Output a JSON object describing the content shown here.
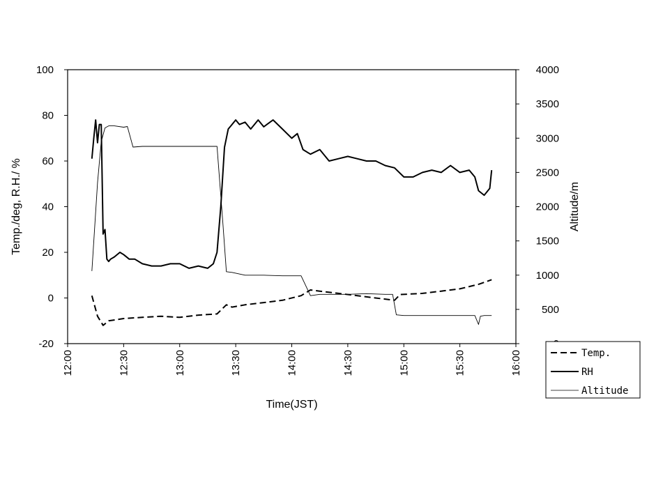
{
  "chart_data": {
    "type": "line",
    "title": "",
    "xlabel": "Time(JST)",
    "ylabel": "Temp./deg, R.H./ %",
    "y2label": "Altitude/m",
    "xlim": [
      "12:00",
      "16:00"
    ],
    "ylim": [
      -20,
      100
    ],
    "y2lim": [
      0,
      4000
    ],
    "x_ticks": [
      "12:00",
      "12:30",
      "13:00",
      "13:30",
      "14:00",
      "14:30",
      "15:00",
      "15:30",
      "16:00"
    ],
    "y_ticks": [
      "-20",
      "0",
      "20",
      "40",
      "60",
      "80",
      "100"
    ],
    "y2_ticks": [
      "0",
      "500",
      "1000",
      "1500",
      "2000",
      "2500",
      "3000",
      "3500",
      "4000"
    ],
    "grid": false,
    "legend_position": "bottom-right",
    "series": [
      {
        "name": "Temp.",
        "axis": "left",
        "style": "dashed",
        "x": [
          "12:13",
          "12:16",
          "12:19",
          "12:22",
          "12:30",
          "12:40",
          "12:50",
          "13:00",
          "13:10",
          "13:20",
          "13:25",
          "13:28",
          "13:35",
          "13:45",
          "13:55",
          "14:05",
          "14:10",
          "14:15",
          "14:25",
          "14:40",
          "14:55",
          "14:58",
          "15:10",
          "15:20",
          "15:30",
          "15:40",
          "15:47"
        ],
        "values": [
          1,
          -8,
          -12,
          -10,
          -9,
          -8.5,
          -8,
          -8.5,
          -7.5,
          -7,
          -3,
          -4,
          -3,
          -2,
          -1,
          1,
          3.5,
          3,
          2,
          0.5,
          -1,
          1.5,
          2,
          3,
          4,
          6,
          8
        ]
      },
      {
        "name": "RH",
        "axis": "left",
        "style": "solid-thick",
        "x": [
          "12:13",
          "12:14",
          "12:15",
          "12:16",
          "12:17",
          "12:18",
          "12:19",
          "12:20",
          "12:21",
          "12:22",
          "12:23",
          "12:25",
          "12:28",
          "12:30",
          "12:33",
          "12:36",
          "12:40",
          "12:45",
          "12:50",
          "12:55",
          "13:00",
          "13:05",
          "13:10",
          "13:15",
          "13:18",
          "13:20",
          "13:22",
          "13:24",
          "13:26",
          "13:28",
          "13:30",
          "13:32",
          "13:35",
          "13:38",
          "13:42",
          "13:45",
          "13:50",
          "13:55",
          "14:00",
          "14:03",
          "14:06",
          "14:10",
          "14:15",
          "14:20",
          "14:25",
          "14:30",
          "14:35",
          "14:40",
          "14:45",
          "14:50",
          "14:55",
          "15:00",
          "15:05",
          "15:10",
          "15:15",
          "15:20",
          "15:25",
          "15:30",
          "15:35",
          "15:38",
          "15:40",
          "15:43",
          "15:46",
          "15:47"
        ],
        "values": [
          61,
          70,
          78,
          68,
          76,
          76,
          28,
          30,
          17,
          16,
          17,
          18,
          20,
          19,
          17,
          17,
          15,
          14,
          14,
          15,
          15,
          13,
          14,
          13,
          15,
          20,
          40,
          66,
          74,
          76,
          78,
          76,
          77,
          74,
          78,
          75,
          78,
          74,
          70,
          72,
          65,
          63,
          65,
          60,
          61,
          62,
          61,
          60,
          60,
          58,
          57,
          53,
          53,
          55,
          56,
          55,
          58,
          55,
          56,
          53,
          47,
          45,
          48,
          56
        ]
      },
      {
        "name": "Altitude",
        "axis": "right",
        "style": "solid-thin",
        "x": [
          "12:13",
          "12:16",
          "12:18",
          "12:20",
          "12:22",
          "12:25",
          "12:30",
          "12:32",
          "12:35",
          "12:40",
          "12:50",
          "13:00",
          "13:10",
          "13:15",
          "13:20",
          "13:23",
          "13:25",
          "13:28",
          "13:35",
          "13:45",
          "13:55",
          "14:00",
          "14:05",
          "14:10",
          "14:15",
          "14:30",
          "14:40",
          "14:50",
          "14:54",
          "14:56",
          "15:00",
          "15:10",
          "15:20",
          "15:30",
          "15:38",
          "15:40",
          "15:41",
          "15:43",
          "15:47"
        ],
        "values": [
          1060,
          2350,
          2950,
          3150,
          3180,
          3180,
          3160,
          3170,
          2870,
          2880,
          2880,
          2880,
          2880,
          2880,
          2880,
          1800,
          1050,
          1040,
          1000,
          1000,
          990,
          990,
          990,
          700,
          720,
          720,
          730,
          720,
          720,
          420,
          410,
          410,
          410,
          410,
          410,
          280,
          400,
          410,
          410
        ]
      }
    ]
  }
}
